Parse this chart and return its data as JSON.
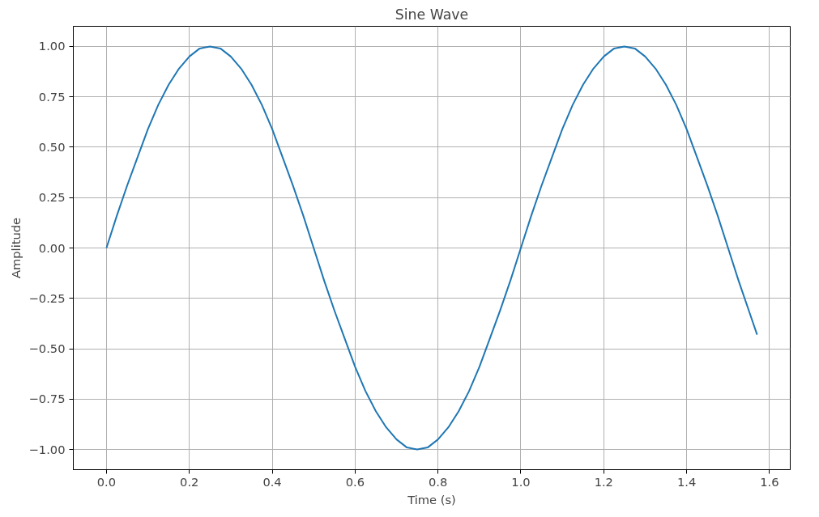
{
  "chart_data": {
    "type": "line",
    "title": "Sine Wave",
    "xlabel": "Time (s)",
    "ylabel": "Amplitude",
    "x": [
      0,
      0.025,
      0.05,
      0.075,
      0.1,
      0.125,
      0.15,
      0.175,
      0.2,
      0.225,
      0.25,
      0.275,
      0.3,
      0.325,
      0.35,
      0.375,
      0.4,
      0.425,
      0.45,
      0.475,
      0.5,
      0.525,
      0.55,
      0.575,
      0.6,
      0.625,
      0.65,
      0.675,
      0.7,
      0.725,
      0.75,
      0.775,
      0.8,
      0.825,
      0.85,
      0.875,
      0.9,
      0.925,
      0.95,
      0.975,
      1,
      1.025,
      1.05,
      1.075,
      1.1,
      1.125,
      1.15,
      1.175,
      1.2,
      1.225,
      1.25,
      1.275,
      1.3,
      1.325,
      1.35,
      1.375,
      1.4,
      1.425,
      1.45,
      1.475,
      1.5,
      1.525,
      1.55,
      1.57
    ],
    "series": [
      {
        "color": "#1f77b4",
        "values": [
          0,
          0.16,
          0.31,
          0.45,
          0.59,
          0.71,
          0.81,
          0.89,
          0.95,
          0.99,
          1,
          0.99,
          0.95,
          0.89,
          0.81,
          0.71,
          0.59,
          0.45,
          0.31,
          0.16,
          0,
          -0.16,
          -0.31,
          -0.45,
          -0.59,
          -0.71,
          -0.81,
          -0.89,
          -0.95,
          -0.99,
          -1,
          -0.99,
          -0.95,
          -0.89,
          -0.81,
          -0.71,
          -0.59,
          -0.45,
          -0.31,
          -0.16,
          0,
          0.16,
          0.31,
          0.45,
          0.59,
          0.71,
          0.81,
          0.89,
          0.95,
          0.99,
          1,
          0.99,
          0.95,
          0.89,
          0.81,
          0.71,
          0.59,
          0.45,
          0.31,
          0.16,
          0,
          -0.16,
          -0.31,
          -0.43
        ]
      }
    ],
    "xlim": [
      -0.08,
      1.65
    ],
    "ylim": [
      -1.1,
      1.1
    ],
    "xticks": [
      {
        "value": 0,
        "label": "0.0"
      },
      {
        "value": 0.2,
        "label": "0.2"
      },
      {
        "value": 0.4,
        "label": "0.4"
      },
      {
        "value": 0.6,
        "label": "0.6"
      },
      {
        "value": 0.8,
        "label": "0.8"
      },
      {
        "value": 1,
        "label": "1.0"
      },
      {
        "value": 1.2,
        "label": "1.2"
      },
      {
        "value": 1.4,
        "label": "1.4"
      },
      {
        "value": 1.6,
        "label": "1.6"
      }
    ],
    "yticks": [
      {
        "value": -1,
        "label": "−1.00"
      },
      {
        "value": -0.75,
        "label": "−0.75"
      },
      {
        "value": -0.5,
        "label": "−0.50"
      },
      {
        "value": -0.25,
        "label": "−0.25"
      },
      {
        "value": 0,
        "label": "0.00"
      },
      {
        "value": 0.25,
        "label": "0.25"
      },
      {
        "value": 0.5,
        "label": "0.50"
      },
      {
        "value": 0.75,
        "label": "0.75"
      },
      {
        "value": 1,
        "label": "1.00"
      }
    ],
    "grid": true,
    "marker": "none",
    "line_style": "solid"
  }
}
